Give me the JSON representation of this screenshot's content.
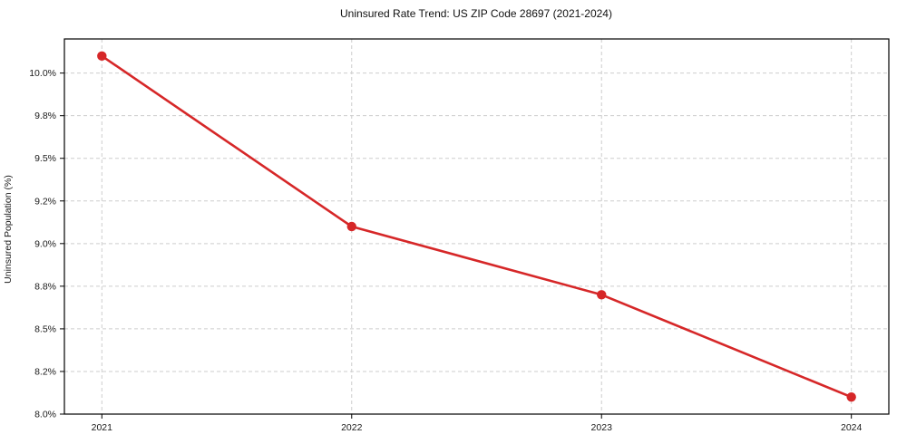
{
  "chart_data": {
    "type": "line",
    "title": "Uninsured Rate Trend: US ZIP Code 28697 (2021-2024)",
    "xlabel": "",
    "ylabel": "Uninsured Population (%)",
    "x": [
      2021,
      2022,
      2023,
      2024
    ],
    "categories": [
      "2021",
      "2022",
      "2023",
      "2024"
    ],
    "series": [
      {
        "name": "Uninsured Rate",
        "values": [
          10.1,
          9.1,
          8.7,
          8.1
        ]
      }
    ],
    "xlim": [
      2020.85,
      2024.15
    ],
    "ylim": [
      8.0,
      10.2
    ],
    "yticks": {
      "values": [
        8.0,
        8.25,
        8.5,
        8.75,
        9.0,
        9.25,
        9.5,
        9.75,
        10.0
      ],
      "labels": [
        "8.0%",
        "8.2%",
        "8.5%",
        "8.8%",
        "9.0%",
        "9.2%",
        "9.5%",
        "9.8%",
        "10.0%"
      ]
    },
    "grid": "both-dashed",
    "legend": "none",
    "line_color": "#d62728",
    "marker": "circle",
    "grid_color": "#cdcdcd",
    "axis_color": "#000000",
    "background_color": "#ffffff"
  }
}
